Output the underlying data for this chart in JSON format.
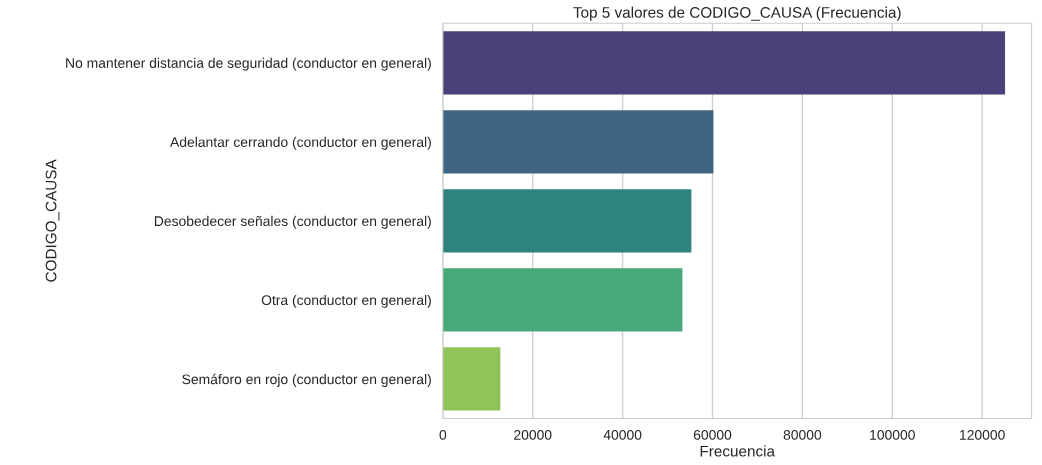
{
  "chart_data": {
    "type": "bar",
    "orientation": "horizontal",
    "title": "Top 5 valores de CODIGO_CAUSA (Frecuencia)",
    "xlabel": "Frecuencia",
    "ylabel": "CODIGO_CAUSA",
    "categories": [
      "No mantener distancia de seguridad (conductor en general)",
      "Adelantar cerrando (conductor en general)",
      "Desobedecer señales (conductor en general)",
      "Otra (conductor en general)",
      "Semáforo en rojo (conductor en general)"
    ],
    "values": [
      125100,
      60200,
      55300,
      53300,
      12800
    ],
    "colors": [
      "#4b4078",
      "#3e6581",
      "#2e837c",
      "#48a877",
      "#90c45a"
    ],
    "xlim": [
      0,
      131000
    ],
    "xticks": [
      0,
      20000,
      40000,
      60000,
      80000,
      100000,
      120000
    ],
    "grid": "x"
  }
}
